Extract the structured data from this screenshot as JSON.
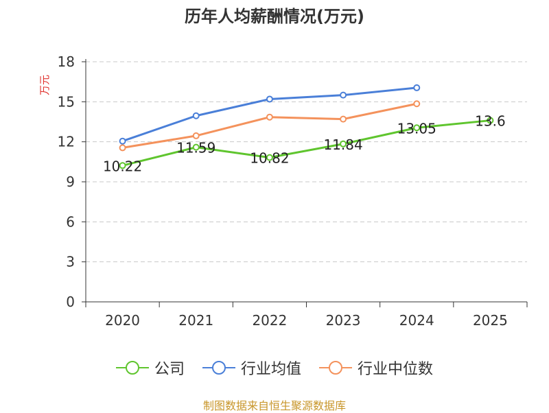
{
  "chart_data": {
    "type": "line",
    "title": "历年人均薪酬情况(万元)",
    "ylabel": "万元",
    "xlabel": "",
    "ylim": [
      0,
      18
    ],
    "yticks": [
      0,
      3,
      6,
      9,
      12,
      15,
      18
    ],
    "categories": [
      "2020",
      "2021",
      "2022",
      "2023",
      "2024",
      "2025"
    ],
    "grid": true,
    "legend_position": "bottom",
    "series": [
      {
        "name": "公司",
        "color": "#5fc52e",
        "labeled": true,
        "values": [
          10.22,
          11.59,
          10.82,
          11.84,
          13.05,
          13.6
        ],
        "labels": [
          "10.22",
          "11.59",
          "10.82",
          "11.84",
          "13.05",
          "13.6"
        ]
      },
      {
        "name": "行业均值",
        "color": "#4a7fd8",
        "labeled": false,
        "values": [
          12.05,
          13.95,
          15.2,
          15.5,
          16.05,
          null
        ]
      },
      {
        "name": "行业中位数",
        "color": "#f4925c",
        "labeled": false,
        "values": [
          11.55,
          12.45,
          13.85,
          13.7,
          14.85,
          null
        ]
      }
    ]
  },
  "source_note": "制图数据来自恒生聚源数据库"
}
